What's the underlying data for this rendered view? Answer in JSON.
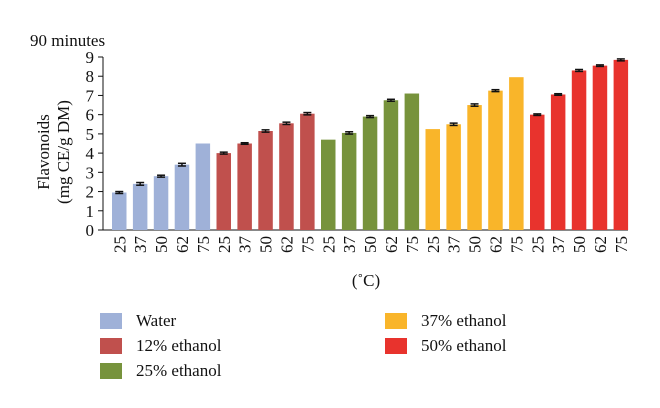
{
  "chart_data": {
    "type": "bar",
    "title": "90 minutes",
    "xlabel": "(˚C)",
    "ylabel_lines": [
      "Flavonoids",
      "(mg CE/g DM)"
    ],
    "ylim": [
      0,
      9
    ],
    "yticks": [
      "0",
      "1",
      "2",
      "3",
      "4",
      "5",
      "6",
      "7",
      "8",
      "9"
    ],
    "categories": [
      "25",
      "37",
      "50",
      "62",
      "75"
    ],
    "series": [
      {
        "name": "Water",
        "color": "#9fb1d8",
        "values": [
          1.95,
          2.4,
          2.8,
          3.4,
          4.5
        ],
        "errors": [
          0.05,
          0.07,
          0.05,
          0.07,
          0
        ]
      },
      {
        "name": "12% ethanol",
        "color": "#c0504d",
        "values": [
          4.0,
          4.5,
          5.15,
          5.55,
          6.05
        ],
        "errors": [
          0.05,
          0.04,
          0.06,
          0.06,
          0.06
        ]
      },
      {
        "name": "25% ethanol",
        "color": "#77933c",
        "values": [
          4.7,
          5.05,
          5.9,
          6.75,
          7.1
        ],
        "errors": [
          0,
          0.06,
          0.05,
          0.05,
          0
        ]
      },
      {
        "name": "37% ethanol",
        "color": "#f9b52a",
        "values": [
          5.25,
          5.5,
          6.5,
          7.25,
          7.95
        ],
        "errors": [
          0,
          0.06,
          0.06,
          0.05,
          0
        ]
      },
      {
        "name": "50% ethanol",
        "color": "#e8332d",
        "values": [
          6.0,
          7.05,
          8.3,
          8.55,
          8.85
        ],
        "errors": [
          0.04,
          0.04,
          0.05,
          0.04,
          0.05
        ]
      }
    ]
  }
}
